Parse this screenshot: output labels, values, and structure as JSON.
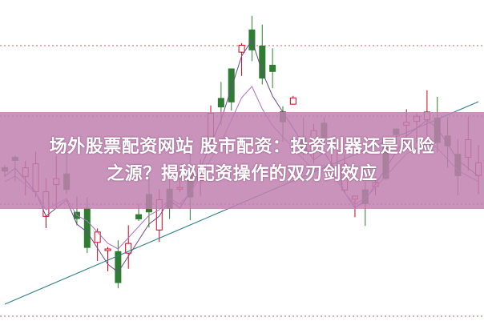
{
  "headline": {
    "line1": "场外股票配资网站 股市配资：投资利器还是风险",
    "line2": "之源？揭秘配资操作的双刃剑效应"
  },
  "colors": {
    "up_candle": "#d0021b",
    "down_candle": "#2e7d32",
    "banner": "#c080b0",
    "grid": "#c06060"
  }
}
